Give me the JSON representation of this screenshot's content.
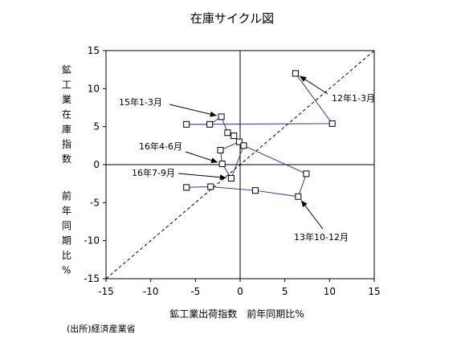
{
  "chart_data": {
    "type": "line",
    "title": "在庫サイクル図",
    "xlabel": "鉱工業出荷指数　前年同期比%",
    "ylabel_parts": [
      "鉱工業在庫指数",
      "前年同期比%"
    ],
    "source": "(出所)経済産業省",
    "xlim": [
      -15,
      15
    ],
    "ylim": [
      -15,
      15
    ],
    "x_ticks": [
      -15,
      -10,
      -5,
      0,
      5,
      10,
      15
    ],
    "y_ticks": [
      -15,
      -10,
      -5,
      0,
      5,
      10,
      15
    ],
    "grid": false,
    "reference_line": {
      "style": "dashed",
      "from": [
        -15,
        -15
      ],
      "to": [
        15,
        15
      ]
    },
    "series": [
      {
        "color": "#3333aa",
        "x": [
          6.2,
          10.3,
          -6.0,
          -3.4,
          -2.1,
          -1.4,
          -0.7,
          -0.1,
          -2.2,
          -2.0,
          -1.0,
          0.4,
          7.4,
          6.5,
          1.7,
          -3.3,
          -6.0
        ],
        "y": [
          12.0,
          5.4,
          5.3,
          5.3,
          6.3,
          4.2,
          3.8,
          3.0,
          1.9,
          0.1,
          -1.8,
          2.5,
          -1.2,
          -4.2,
          -3.4,
          -2.9,
          -3.0
        ]
      }
    ],
    "annotations": [
      {
        "text": "12年1-3月",
        "target": [
          6.2,
          12.0
        ]
      },
      {
        "text": "15年1-3月",
        "target": [
          -2.1,
          6.3
        ]
      },
      {
        "text": "16年4-6月",
        "target": [
          -2.0,
          0.1
        ]
      },
      {
        "text": "16年7-9月",
        "target": [
          -1.0,
          -1.8
        ]
      },
      {
        "text": "13年10-12月",
        "target": [
          6.5,
          -4.2
        ]
      }
    ]
  }
}
